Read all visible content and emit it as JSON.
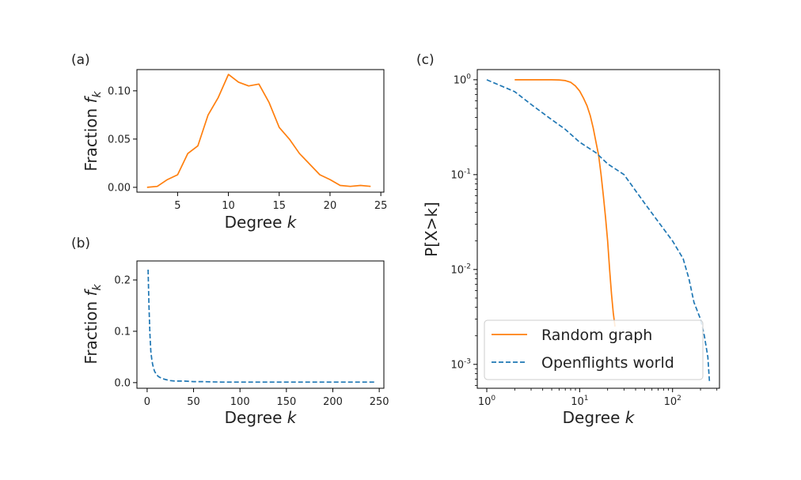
{
  "chart_data": [
    {
      "type": "line",
      "panel_label": "(a)",
      "xlabel": "Degree k",
      "ylabel": "Fraction f_k",
      "xlim": [
        1,
        25.3
      ],
      "ylim": [
        -0.005,
        0.122
      ],
      "xticks": [
        5,
        10,
        15,
        20,
        25
      ],
      "yticks": [
        0.0,
        0.05,
        0.1
      ],
      "ytick_labels": [
        "0.00",
        "0.05",
        "0.10"
      ],
      "grid": false,
      "series": [
        {
          "name": "Random graph",
          "color": "#ff7f0e",
          "style": "solid",
          "x": [
            2,
            3,
            4,
            5,
            6,
            7,
            8,
            9,
            10,
            11,
            12,
            13,
            14,
            15,
            16,
            17,
            18,
            19,
            20,
            21,
            22,
            23,
            24
          ],
          "y": [
            0.0,
            0.001,
            0.008,
            0.013,
            0.035,
            0.043,
            0.075,
            0.093,
            0.117,
            0.109,
            0.105,
            0.107,
            0.088,
            0.062,
            0.05,
            0.035,
            0.024,
            0.013,
            0.008,
            0.002,
            0.001,
            0.002,
            0.001
          ]
        }
      ]
    },
    {
      "type": "line",
      "panel_label": "(b)",
      "xlabel": "Degree k",
      "ylabel": "Fraction f_k",
      "xlim": [
        -11,
        255
      ],
      "ylim": [
        -0.011,
        0.237
      ],
      "xticks": [
        0,
        50,
        100,
        150,
        200,
        250
      ],
      "yticks": [
        0.0,
        0.1,
        0.2
      ],
      "ytick_labels": [
        "0.0",
        "0.1",
        "0.2"
      ],
      "grid": false,
      "series": [
        {
          "name": "Openflights world",
          "color": "#1f77b4",
          "style": "dashed",
          "x": [
            1,
            2,
            3,
            4,
            5,
            6,
            7,
            8,
            10,
            12,
            14,
            16,
            18,
            20,
            25,
            30,
            35,
            40,
            50,
            60,
            80,
            100,
            150,
            200,
            245
          ],
          "y": [
            0.22,
            0.15,
            0.095,
            0.06,
            0.045,
            0.035,
            0.028,
            0.022,
            0.016,
            0.012,
            0.01,
            0.008,
            0.007,
            0.006,
            0.004,
            0.003,
            0.003,
            0.003,
            0.002,
            0.002,
            0.001,
            0.001,
            0.001,
            0.001,
            0.001
          ]
        }
      ]
    },
    {
      "type": "line",
      "panel_label": "(c)",
      "xlabel": "Degree k",
      "ylabel": "P[X>k]",
      "xscale": "log",
      "yscale": "log",
      "xlim": [
        0.79,
        320
      ],
      "ylim": [
        0.00056,
        1.28
      ],
      "xticks": [
        1,
        10,
        100
      ],
      "xtick_labels": [
        {
          "base": "10",
          "exp": "0"
        },
        {
          "base": "10",
          "exp": "1"
        },
        {
          "base": "10",
          "exp": "2"
        }
      ],
      "yticks": [
        1,
        0.1,
        0.01,
        0.001
      ],
      "ytick_labels": [
        {
          "base": "10",
          "exp": "0"
        },
        {
          "base": "10",
          "exp": "-1"
        },
        {
          "base": "10",
          "exp": "-2"
        },
        {
          "base": "10",
          "exp": "-3"
        }
      ],
      "grid": false,
      "legend": {
        "placement": "lower-left",
        "entries": [
          "Random graph",
          "Openflights world"
        ]
      },
      "series": [
        {
          "name": "Random graph",
          "color": "#ff7f0e",
          "style": "solid",
          "x": [
            2,
            3,
            4,
            5,
            6,
            7,
            8,
            9,
            10,
            11,
            12,
            13,
            14,
            15,
            16,
            17,
            18,
            19,
            20,
            21,
            22,
            23,
            24
          ],
          "y": [
            1.0,
            1.0,
            1.0,
            1.0,
            0.995,
            0.98,
            0.94,
            0.86,
            0.76,
            0.64,
            0.53,
            0.42,
            0.31,
            0.22,
            0.16,
            0.1,
            0.06,
            0.035,
            0.02,
            0.01,
            0.0055,
            0.0035,
            0.0025
          ]
        },
        {
          "name": "Openflights world",
          "color": "#1f77b4",
          "style": "dashed",
          "x": [
            1,
            2,
            3,
            5,
            7,
            10,
            15,
            20,
            30,
            50,
            70,
            100,
            130,
            150,
            170,
            200,
            220,
            240,
            250
          ],
          "y": [
            1.0,
            0.75,
            0.55,
            0.38,
            0.3,
            0.22,
            0.17,
            0.13,
            0.1,
            0.05,
            0.032,
            0.02,
            0.013,
            0.008,
            0.0045,
            0.003,
            0.002,
            0.0012,
            0.00065
          ]
        }
      ]
    }
  ]
}
